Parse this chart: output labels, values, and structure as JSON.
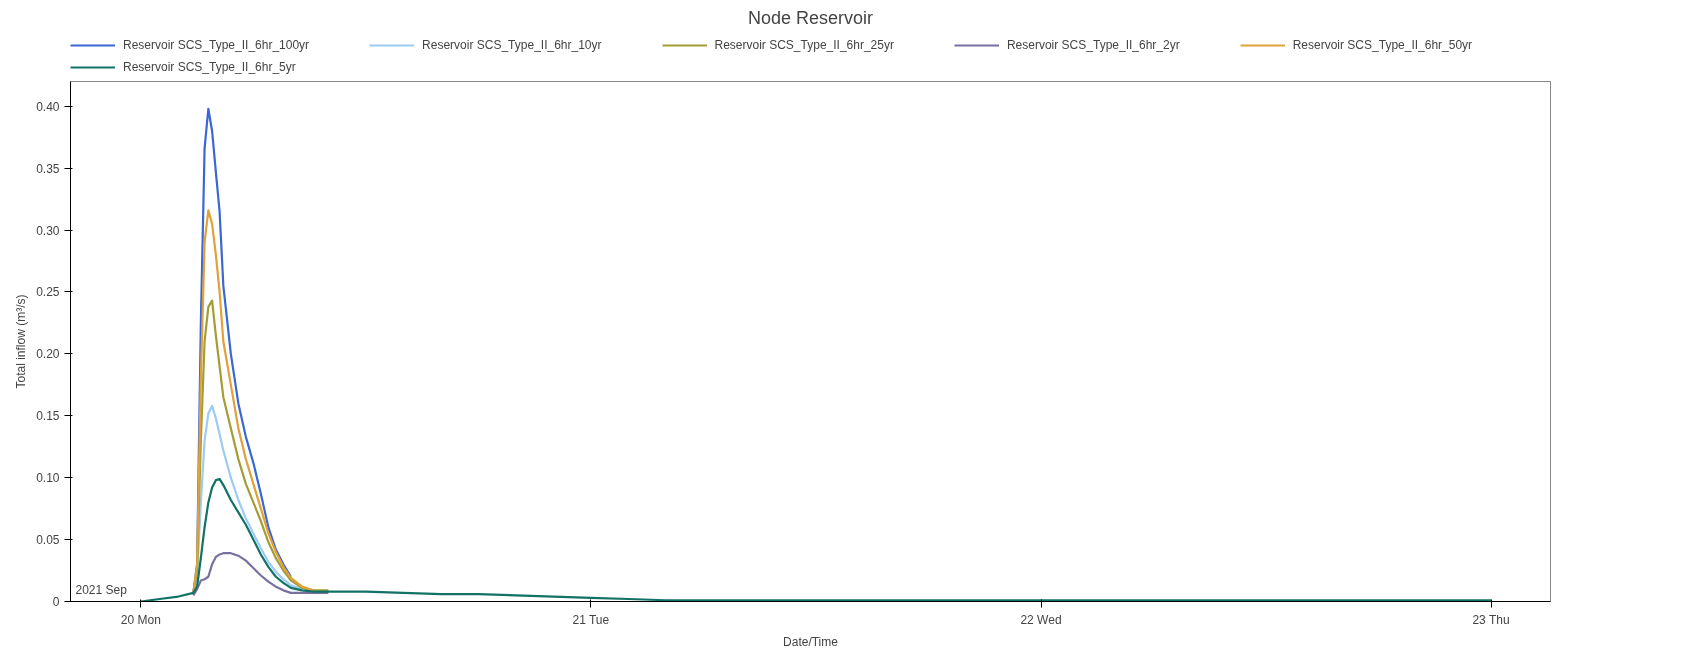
{
  "chart_data": {
    "type": "line",
    "title": "Node Reservoir",
    "xlabel": "Date/Time",
    "ylabel": "Total inflow (m³/s)",
    "x": [
      "2021-09-20T00:00",
      "2021-09-20T01:00",
      "2021-09-20T02:00",
      "2021-09-20T02:48",
      "2021-09-20T03:00",
      "2021-09-20T03:12",
      "2021-09-20T03:24",
      "2021-09-20T03:36",
      "2021-09-20T03:48",
      "2021-09-20T04:00",
      "2021-09-20T04:12",
      "2021-09-20T04:24",
      "2021-09-20T04:48",
      "2021-09-20T05:12",
      "2021-09-20T05:36",
      "2021-09-20T06:00",
      "2021-09-20T06:24",
      "2021-09-20T06:48",
      "2021-09-20T07:12",
      "2021-09-20T07:36",
      "2021-09-20T08:00",
      "2021-09-20T08:36",
      "2021-09-20T09:12",
      "2021-09-20T10:00",
      "2021-09-20T12:00",
      "2021-09-20T14:00",
      "2021-09-20T16:00",
      "2021-09-20T18:00",
      "2021-09-20T20:00",
      "2021-09-20T22:00",
      "2021-09-21T00:00",
      "2021-09-21T02:00",
      "2021-09-21T04:00",
      "2021-09-21T08:00",
      "2021-09-21T16:00",
      "2021-09-22T00:00",
      "2021-09-22T12:00",
      "2021-09-23T00:00"
    ],
    "series": [
      {
        "name": "Reservoir SCS_Type_II_6hr_100yr",
        "color": "#3b67d4",
        "values": [
          null,
          null,
          null,
          0.007,
          0.03,
          0.225,
          0.366,
          0.398,
          0.38,
          0.347,
          0.315,
          0.255,
          0.2,
          0.16,
          0.133,
          0.112,
          0.087,
          0.06,
          0.042,
          0.03,
          0.02,
          null,
          null,
          null,
          null,
          null,
          null,
          null,
          null,
          null,
          null,
          null,
          null,
          null,
          null,
          null,
          null,
          null
        ]
      },
      {
        "name": "Reservoir SCS_Type_II_6hr_10yr",
        "color": "#9ccbf5",
        "values": [
          null,
          null,
          null,
          0.007,
          0.02,
          0.08,
          0.13,
          0.152,
          0.158,
          0.148,
          0.135,
          0.122,
          0.1,
          0.082,
          0.067,
          0.055,
          0.043,
          0.032,
          0.024,
          0.018,
          0.013,
          0.01,
          null,
          null,
          null,
          null,
          null,
          null,
          null,
          null,
          null,
          null,
          null,
          null,
          null,
          null,
          null,
          null
        ]
      },
      {
        "name": "Reservoir SCS_Type_II_6hr_25yr",
        "color": "#a39d35",
        "values": [
          null,
          null,
          null,
          0.007,
          0.025,
          0.13,
          0.21,
          0.238,
          0.243,
          0.215,
          0.19,
          0.165,
          0.14,
          0.115,
          0.095,
          0.08,
          0.065,
          0.048,
          0.035,
          0.025,
          0.017,
          0.011,
          0.009,
          0.009,
          null,
          null,
          null,
          null,
          null,
          null,
          null,
          null,
          null,
          null,
          null,
          null,
          null,
          null
        ]
      },
      {
        "name": "Reservoir SCS_Type_II_6hr_2yr",
        "color": "#7a6fa1",
        "values": [
          null,
          null,
          null,
          0.005,
          0.01,
          0.017,
          0.018,
          0.02,
          0.03,
          0.036,
          0.038,
          0.039,
          0.039,
          0.037,
          0.033,
          0.027,
          0.021,
          0.016,
          0.012,
          0.009,
          0.007,
          0.007,
          0.007,
          0.007,
          null,
          null,
          null,
          null,
          null,
          null,
          null,
          null,
          null,
          null,
          null,
          null,
          null,
          null
        ]
      },
      {
        "name": "Reservoir SCS_Type_II_6hr_50yr",
        "color": "#e0a03a",
        "values": [
          null,
          null,
          null,
          0.007,
          0.03,
          0.18,
          0.29,
          0.316,
          0.305,
          0.28,
          0.25,
          0.21,
          0.175,
          0.14,
          0.115,
          0.095,
          0.075,
          0.055,
          0.04,
          0.028,
          0.019,
          0.012,
          0.009,
          null,
          null,
          null,
          null,
          null,
          null,
          null,
          null,
          null,
          null,
          null,
          null,
          null,
          null,
          null
        ]
      },
      {
        "name": "Reservoir SCS_Type_II_6hr_5yr",
        "color": "#117265",
        "values": [
          0,
          0.002,
          0.004,
          0.007,
          0.012,
          0.035,
          0.06,
          0.08,
          0.092,
          0.098,
          0.099,
          0.094,
          0.082,
          0.072,
          0.062,
          0.05,
          0.038,
          0.028,
          0.02,
          0.015,
          0.011,
          0.009,
          0.008,
          0.008,
          0.008,
          0.007,
          0.006,
          0.006,
          0.005,
          0.004,
          0.003,
          0.002,
          0.001,
          0.001,
          0.001,
          0.001,
          0.001,
          0.001
        ]
      }
    ],
    "xlim": [
      "2021-09-19T20:15",
      "2021-09-23T03:10"
    ],
    "xticks": [
      {
        "value": "2021-09-20",
        "label": "20 Mon"
      },
      {
        "value": "2021-09-21",
        "label": "21 Tue"
      },
      {
        "value": "2021-09-22",
        "label": "22 Wed"
      },
      {
        "value": "2021-09-23",
        "label": "23 Thu"
      }
    ],
    "ylim": [
      0,
      0.42
    ],
    "yticks": [
      0,
      0.05,
      {
        "value": 0.1,
        "label": "0.10"
      },
      0.15,
      {
        "value": 0.2,
        "label": "0.20"
      },
      0.25,
      {
        "value": 0.3,
        "label": "0.30"
      },
      0.35,
      {
        "value": 0.4,
        "label": "0.40"
      }
    ],
    "annotations": [
      "2021 Sep"
    ],
    "grid": false,
    "legend": "top",
    "marker": "none",
    "line_style": "solid"
  }
}
